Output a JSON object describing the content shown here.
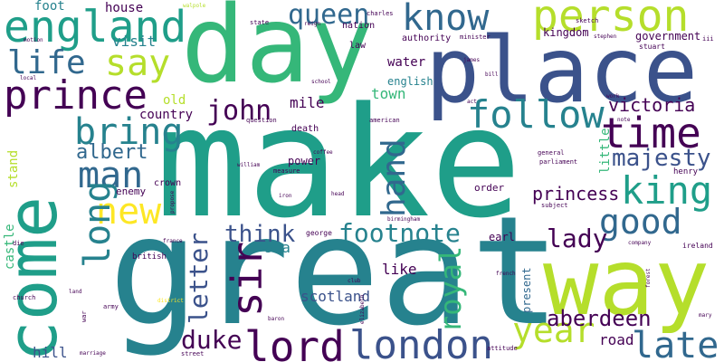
{
  "palette": {
    "purple": "#440154",
    "indigo": "#3b528b",
    "navy": "#31688e",
    "teal_blue": "#26828e",
    "teal": "#1f9e89",
    "green": "#35b779",
    "light_green": "#6ece58",
    "lime": "#b5de2b",
    "yellow": "#fde725"
  },
  "words": {
    "make": "make",
    "great": "great",
    "day": "day",
    "place": "place",
    "come": "come",
    "way": "way",
    "person": "person",
    "england": "england",
    "know": "know",
    "prince": "prince",
    "life": "life",
    "say": "say",
    "queen": "queen",
    "follow": "follow",
    "time": "time",
    "king": "king",
    "bring": "bring",
    "man": "man",
    "albert": "albert",
    "john": "john",
    "hand": "hand",
    "majesty": "majesty",
    "victoria": "victoria",
    "new": "new",
    "good": "good",
    "long": "long",
    "princess": "princess",
    "think": "think",
    "footnote": "footnote",
    "lady": "lady",
    "sir": "sir",
    "letter": "letter",
    "royal": "royal",
    "lord": "lord",
    "london": "london",
    "year": "year",
    "late": "late",
    "aberdeen": "aberdeen",
    "duke": "duke",
    "scotland": "scotland",
    "like": "like",
    "road": "road",
    "hill": "hill",
    "castle": "castle",
    "stand": "stand",
    "sea": "sea",
    "earl": "earl",
    "order": "order",
    "power": "power",
    "enemy": "enemy",
    "crown": "crown",
    "visit": "visit",
    "house": "house",
    "foot": "foot",
    "old": "old",
    "country": "country",
    "mile": "mile",
    "town": "town",
    "water": "water",
    "english": "english",
    "kingdom": "kingdom",
    "government": "government",
    "little": "little",
    "present": "present",
    "death": "death",
    "british": "british",
    "nation": "nation",
    "authority": "authority",
    "law": "law",
    "state": "state",
    "henry": "henry",
    "ireland": "ireland",
    "george": "george",
    "american": "american",
    "church": "church",
    "die": "die",
    "war": "war",
    "street": "street",
    "attitude": "attitude",
    "stuart": "stuart",
    "minister": "minister",
    "charles": "charles",
    "sketch": "sketch",
    "general": "general",
    "parliament": "parliament",
    "question": "question",
    "measure": "measure",
    "army": "army",
    "marriage": "marriage",
    "baron": "baron",
    "subject": "subject",
    "company": "company",
    "motion": "motion",
    "local": "local",
    "walpole": "walpole",
    "reign": "reign",
    "school": "school",
    "birmingham": "birmingham",
    "propose": "propose",
    "william": "william",
    "coffee": "coffee",
    "note": "note",
    "work": "work",
    "forest": "forest",
    "france": "france",
    "district": "district",
    "james": "james",
    "bill": "bill",
    "head": "head",
    "french": "french",
    "stephen": "stephen",
    "act": "act",
    "iron": "iron",
    "club": "club",
    "land": "land",
    "elizabeth": "elizabeth",
    "iii": "iii",
    "mary": "mary"
  }
}
